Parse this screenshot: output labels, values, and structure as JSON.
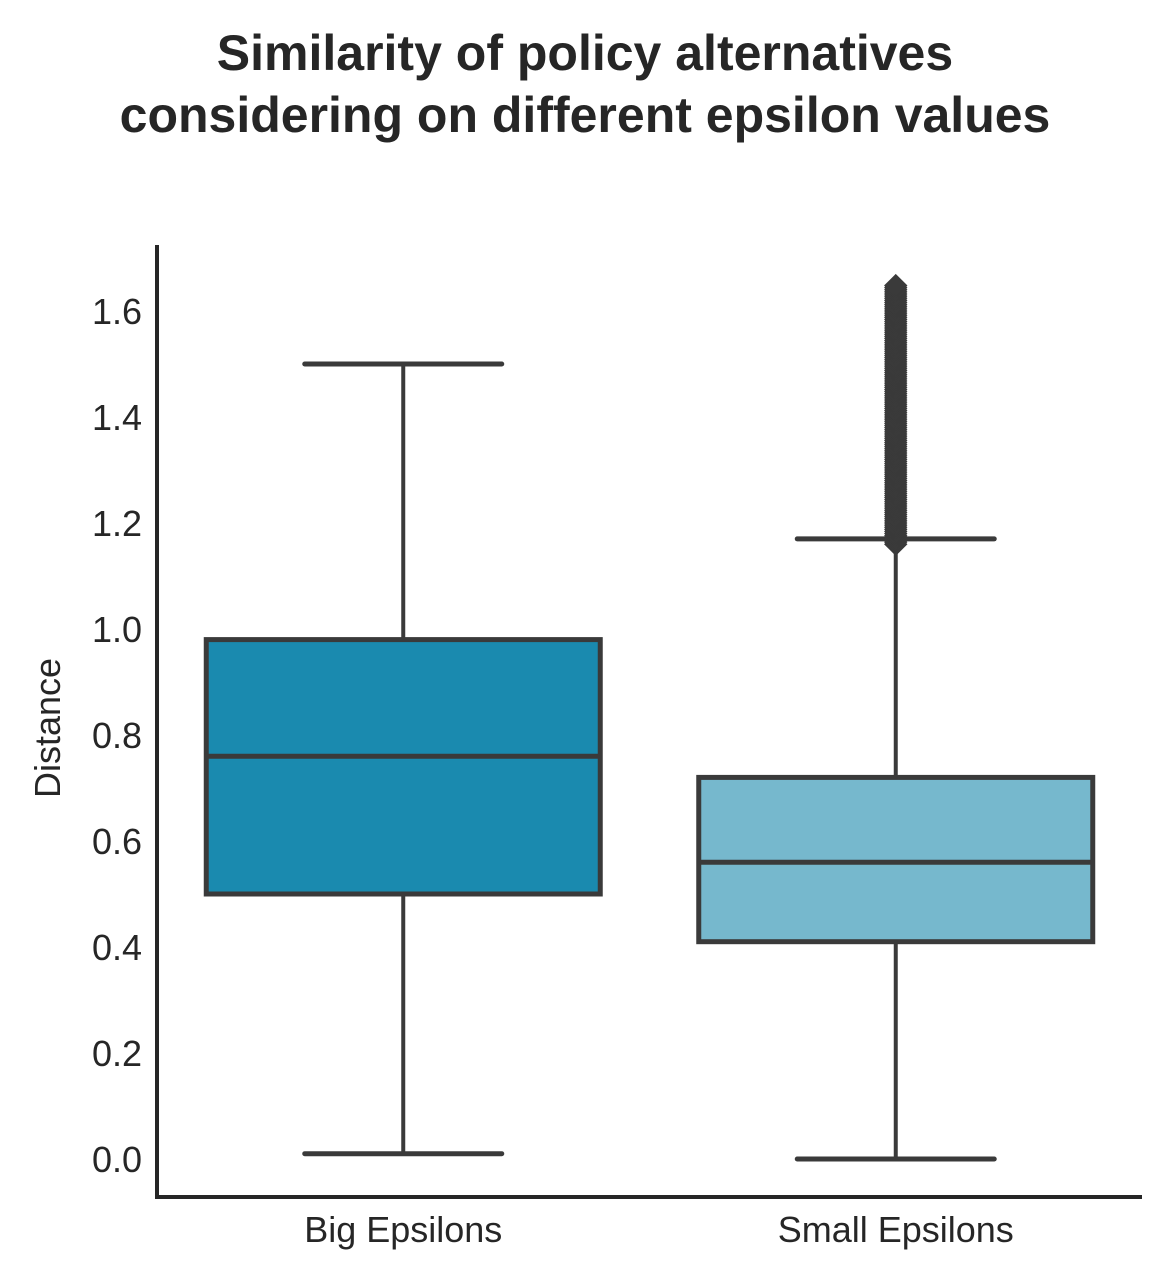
{
  "chart_data": {
    "type": "box",
    "title": [
      "Similarity of policy alternatives",
      "considering on different epsilon values"
    ],
    "xlabel": "",
    "ylabel": "Distance",
    "categories": [
      "Big Epsilons",
      "Small Epsilons"
    ],
    "ylim": [
      -0.07,
      1.72
    ],
    "yticks": [
      "0.0",
      "0.2",
      "0.4",
      "0.6",
      "0.8",
      "1.0",
      "1.2",
      "1.4",
      "1.6"
    ],
    "grid": false,
    "boxes": [
      {
        "category": "Big Epsilons",
        "whisker_low": 0.01,
        "q1": 0.5,
        "median": 0.76,
        "q3": 0.98,
        "whisker_high": 1.5,
        "outliers": [],
        "color": "#1a8aaf"
      },
      {
        "category": "Small Epsilons",
        "whisker_low": 0.0,
        "q1": 0.41,
        "median": 0.56,
        "q3": 0.72,
        "whisker_high": 1.17,
        "outliers_range": [
          1.16,
          1.65
        ],
        "color": "#76b8cd"
      }
    ],
    "line_color": "#3a3a3a"
  }
}
